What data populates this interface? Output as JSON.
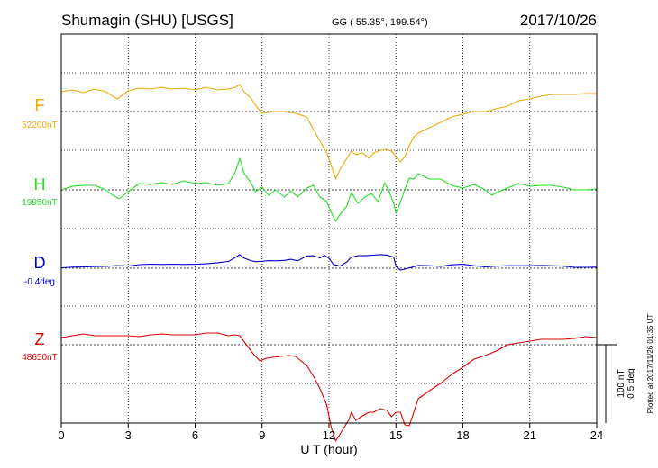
{
  "header": {
    "station": "Shumagin (SHU)  [USGS]",
    "coords": "GG ( 55.35°, 199.54°)",
    "date": "2017/10/26"
  },
  "side_note": "Plotted at 2017/11/26 01:35 UT",
  "scale": {
    "nt": "100 nT",
    "deg": "0.5 deg"
  },
  "colors": {
    "F": "#f0a800",
    "H": "#22dd22",
    "D": "#0000cc",
    "Z": "#dd0000",
    "grid": "#000000"
  },
  "chart_data": {
    "type": "line",
    "title": "Shumagin (SHU)  [USGS]",
    "xlabel": "U T (hour)",
    "xlim": [
      0,
      24
    ],
    "xticks": [
      "0",
      "3",
      "6",
      "9",
      "12",
      "15",
      "18",
      "21",
      "24"
    ],
    "series": [
      {
        "name": "F",
        "baseline_label": "52200nT",
        "baseline": 52200,
        "unit": "nT",
        "color": "#f0a800",
        "x": [
          0,
          0.5,
          1,
          1.5,
          2,
          2.5,
          3,
          3.5,
          4,
          4.5,
          5,
          5.5,
          6,
          6.5,
          7,
          7.5,
          7.8,
          8,
          8.2,
          8.5,
          8.7,
          9,
          9.5,
          10,
          10.5,
          11,
          11.3,
          11.6,
          11.9,
          12.1,
          12.3,
          12.5,
          12.8,
          13,
          13.2,
          13.5,
          13.8,
          14,
          14.3,
          14.6,
          14.8,
          15,
          15.2,
          15.4,
          15.6,
          15.8,
          16,
          16.5,
          17,
          17.5,
          18,
          18.5,
          19,
          19.5,
          20,
          20.5,
          21,
          21.5,
          22,
          22.5,
          23,
          23.5,
          24
        ],
        "y": [
          52222,
          52224,
          52221,
          52225,
          52222,
          52214,
          52223,
          52226,
          52225,
          52227,
          52225,
          52226,
          52224,
          52227,
          52224,
          52225,
          52227,
          52230,
          52222,
          52215,
          52207,
          52198,
          52200,
          52200,
          52198,
          52194,
          52180,
          52167,
          52154,
          52140,
          52125,
          52136,
          52148,
          52156,
          52152,
          52154,
          52148,
          52154,
          52157,
          52158,
          52156,
          52150,
          52144,
          52150,
          52162,
          52172,
          52176,
          52182,
          52188,
          52194,
          52197,
          52200,
          52200,
          52203,
          52206,
          52212,
          52214,
          52217,
          52219,
          52219,
          52219,
          52220,
          52220
        ]
      },
      {
        "name": "H",
        "baseline_label": "19950nT",
        "baseline": 19950,
        "unit": "nT",
        "color": "#22dd22",
        "x": [
          0,
          0.5,
          1,
          1.5,
          2,
          2.3,
          2.6,
          3,
          3.5,
          4,
          4.5,
          5,
          5.5,
          6,
          6.5,
          7,
          7.5,
          7.8,
          8,
          8.2,
          8.5,
          8.7,
          9,
          9.3,
          9.6,
          10,
          10.3,
          10.6,
          11,
          11.3,
          11.6,
          11.9,
          12.1,
          12.3,
          12.5,
          12.8,
          13,
          13.3,
          13.6,
          13.9,
          14.2,
          14.5,
          14.7,
          14.9,
          15,
          15.2,
          15.4,
          15.6,
          15.8,
          16,
          16.5,
          17,
          17.5,
          18,
          18.5,
          19,
          19.3,
          19.6,
          20,
          20.5,
          21,
          21.5,
          22,
          22.5,
          23,
          23.5,
          24
        ],
        "y": [
          19950,
          19954,
          19955,
          19955,
          19950,
          19944,
          19940,
          19948,
          19957,
          19956,
          19958,
          19956,
          19960,
          19957,
          19958,
          19955,
          19957,
          19970,
          19985,
          19968,
          19958,
          19948,
          19953,
          19944,
          19950,
          19942,
          19949,
          19942,
          19952,
          19955,
          19942,
          19937,
          19925,
          19915,
          19923,
          19932,
          19947,
          19935,
          19942,
          19946,
          19937,
          19958,
          19948,
          19935,
          19924,
          19936,
          19951,
          19963,
          19962,
          19968,
          19962,
          19962,
          19955,
          19952,
          19956,
          19950,
          19944,
          19948,
          19952,
          19957,
          19954,
          19955,
          19955,
          19953,
          19950,
          19950,
          19951
        ]
      },
      {
        "name": "D",
        "baseline_label": "-0.4deg",
        "baseline": -0.4,
        "unit": "deg",
        "color": "#0000cc",
        "x": [
          0,
          0.5,
          1,
          1.5,
          2,
          2.5,
          3,
          3.5,
          4,
          4.5,
          5,
          5.5,
          6,
          6.5,
          7,
          7.5,
          7.8,
          8,
          8.2,
          8.5,
          8.7,
          9,
          9.3,
          9.6,
          10,
          10.3,
          10.6,
          11,
          11.3,
          11.6,
          11.8,
          12,
          12.2,
          12.5,
          12.8,
          13,
          13.3,
          13.6,
          14,
          14.3,
          14.6,
          14.9,
          15,
          15.2,
          15.4,
          15.6,
          15.8,
          16,
          16.5,
          17,
          17.5,
          18,
          18.5,
          19,
          19.5,
          20,
          20.5,
          21,
          21.5,
          22,
          22.5,
          23,
          23.5,
          24
        ],
        "y": [
          -0.397,
          -0.393,
          -0.392,
          -0.389,
          -0.388,
          -0.383,
          -0.386,
          -0.377,
          -0.374,
          -0.376,
          -0.374,
          -0.376,
          -0.375,
          -0.372,
          -0.365,
          -0.357,
          -0.331,
          -0.313,
          -0.336,
          -0.352,
          -0.358,
          -0.356,
          -0.352,
          -0.353,
          -0.35,
          -0.343,
          -0.353,
          -0.322,
          -0.32,
          -0.334,
          -0.318,
          -0.336,
          -0.376,
          -0.386,
          -0.36,
          -0.33,
          -0.32,
          -0.32,
          -0.316,
          -0.313,
          -0.316,
          -0.33,
          -0.388,
          -0.412,
          -0.406,
          -0.398,
          -0.391,
          -0.382,
          -0.384,
          -0.388,
          -0.378,
          -0.375,
          -0.384,
          -0.391,
          -0.387,
          -0.384,
          -0.384,
          -0.384,
          -0.382,
          -0.384,
          -0.387,
          -0.394,
          -0.394,
          -0.393
        ]
      },
      {
        "name": "Z",
        "baseline_label": "48650nT",
        "baseline": 48650,
        "unit": "nT",
        "color": "#dd0000",
        "x": [
          0,
          0.5,
          1,
          1.5,
          2,
          2.5,
          3,
          3.5,
          4,
          4.5,
          5,
          5.5,
          6,
          6.5,
          7,
          7.5,
          7.8,
          8,
          8.3,
          8.6,
          8.9,
          9.2,
          9.5,
          9.8,
          10.2,
          10.5,
          11,
          11.3,
          11.6,
          11.9,
          12.1,
          12.3,
          12.6,
          12.9,
          13,
          13.2,
          13.5,
          13.8,
          14,
          14.3,
          14.6,
          14.8,
          15,
          15.2,
          15.4,
          15.6,
          15.8,
          16,
          16.5,
          17,
          17.5,
          18,
          18.5,
          19,
          19.5,
          20,
          20.5,
          21,
          21.5,
          22,
          22.5,
          23,
          23.5,
          24
        ],
        "y": [
          48658,
          48660,
          48662,
          48660,
          48660,
          48660,
          48660,
          48659,
          48661,
          48662,
          48661,
          48661,
          48661,
          48663,
          48663,
          48660,
          48661,
          48660,
          48650,
          48640,
          48632,
          48635,
          48636,
          48637,
          48638,
          48637,
          48627,
          48615,
          48601,
          48583,
          48558,
          48543,
          48555,
          48567,
          48575,
          48566,
          48571,
          48575,
          48575,
          48579,
          48577,
          48570,
          48575,
          48575,
          48561,
          48560,
          48575,
          48590,
          48599,
          48607,
          48617,
          48625,
          48634,
          48638,
          48643,
          48650,
          48652,
          48654,
          48656,
          48656,
          48656,
          48657,
          48659,
          48658
        ]
      }
    ]
  }
}
